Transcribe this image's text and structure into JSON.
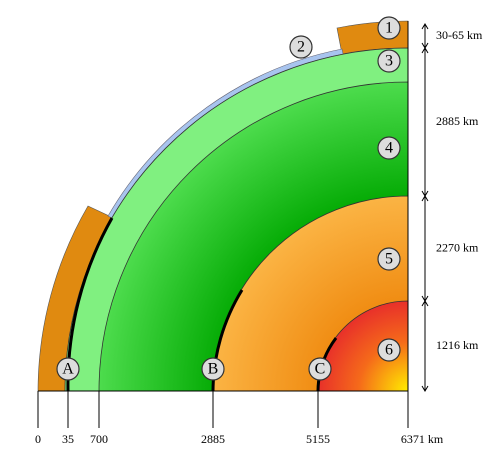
{
  "layers": [
    {
      "label": "1"
    },
    {
      "label": "2"
    },
    {
      "label": "3"
    },
    {
      "label": "4"
    },
    {
      "label": "5"
    },
    {
      "label": "6"
    }
  ],
  "points": [
    {
      "label": "A"
    },
    {
      "label": "B"
    },
    {
      "label": "C"
    }
  ],
  "thickness": [
    "30-65 km",
    "2885 km",
    "2270 km",
    "1216 km"
  ],
  "axis_labels": [
    "0",
    "35",
    "700",
    "2885",
    "5155",
    "6371 km"
  ]
}
